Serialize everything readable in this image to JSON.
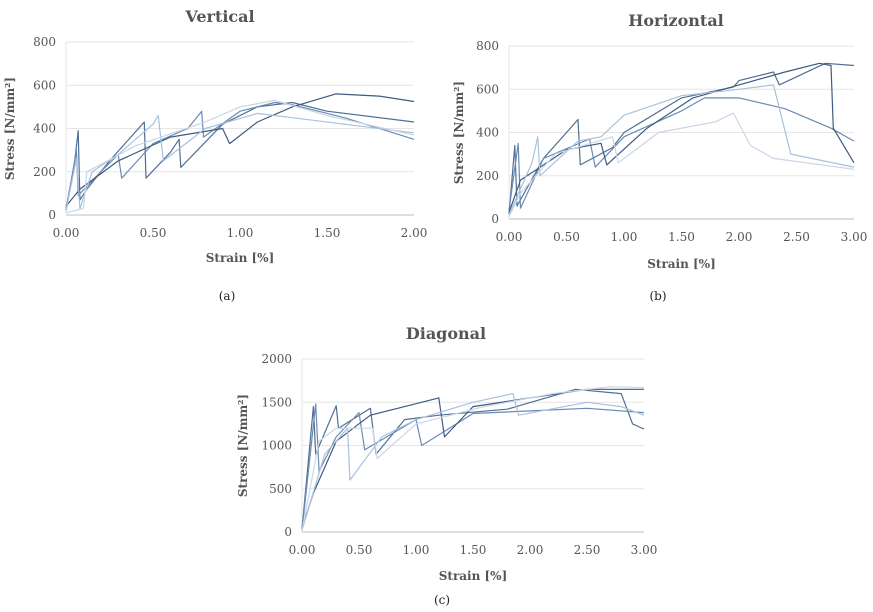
{
  "chart_data": [
    {
      "type": "line",
      "title": "Vertical",
      "xlabel": "Strain [%]",
      "ylabel": "Stress  [N/mm²]",
      "xlim": [
        0,
        2.0
      ],
      "ylim": [
        0,
        800
      ],
      "x_ticks": [
        "0.00",
        "0.50",
        "1.00",
        "1.50",
        "2.00"
      ],
      "y_ticks": [
        "0",
        "200",
        "400",
        "600",
        "800"
      ],
      "panel_label": "(a)",
      "grid": true,
      "series": [
        {
          "color": "#4f6f96",
          "points": [
            [
              0,
              20
            ],
            [
              0.05,
              250
            ],
            [
              0.07,
              390
            ],
            [
              0.08,
              70
            ],
            [
              0.12,
              120
            ],
            [
              0.25,
              250
            ],
            [
              0.45,
              430
            ],
            [
              0.46,
              170
            ],
            [
              0.6,
              290
            ],
            [
              0.65,
              350
            ],
            [
              0.66,
              220
            ],
            [
              0.9,
              420
            ],
            [
              1.1,
              500
            ],
            [
              1.3,
              520
            ],
            [
              1.5,
              480
            ],
            [
              2.0,
              430
            ]
          ]
        },
        {
          "color": "#6b8bb3",
          "points": [
            [
              0,
              30
            ],
            [
              0.04,
              200
            ],
            [
              0.06,
              300
            ],
            [
              0.07,
              90
            ],
            [
              0.2,
              200
            ],
            [
              0.3,
              280
            ],
            [
              0.32,
              170
            ],
            [
              0.5,
              330
            ],
            [
              0.7,
              400
            ],
            [
              0.78,
              480
            ],
            [
              0.79,
              360
            ],
            [
              1.0,
              480
            ],
            [
              1.2,
              520
            ],
            [
              1.3,
              510
            ],
            [
              1.6,
              450
            ],
            [
              2.0,
              350
            ]
          ]
        },
        {
          "color": "#3d5a80",
          "points": [
            [
              0,
              40
            ],
            [
              0.08,
              120
            ],
            [
              0.3,
              250
            ],
            [
              0.6,
              360
            ],
            [
              0.9,
              400
            ],
            [
              0.94,
              330
            ],
            [
              1.1,
              430
            ],
            [
              1.3,
              500
            ],
            [
              1.55,
              560
            ],
            [
              1.8,
              550
            ],
            [
              2.0,
              525
            ]
          ]
        },
        {
          "color": "#a9c1dd",
          "points": [
            [
              0,
              20
            ],
            [
              0.06,
              260
            ],
            [
              0.08,
              30
            ],
            [
              0.15,
              200
            ],
            [
              0.3,
              280
            ],
            [
              0.5,
              420
            ],
            [
              0.53,
              460
            ],
            [
              0.56,
              250
            ],
            [
              0.8,
              400
            ],
            [
              1.1,
              470
            ],
            [
              1.3,
              450
            ],
            [
              1.6,
              420
            ],
            [
              2.0,
              380
            ]
          ]
        },
        {
          "color": "#c9d6e6",
          "points": [
            [
              0,
              10
            ],
            [
              0.1,
              30
            ],
            [
              0.12,
              200
            ],
            [
              0.4,
              320
            ],
            [
              0.8,
              430
            ],
            [
              1.0,
              500
            ],
            [
              1.2,
              530
            ],
            [
              1.5,
              460
            ],
            [
              2.0,
              370
            ]
          ]
        }
      ]
    },
    {
      "type": "line",
      "title": "Horizontal",
      "xlabel": "Strain [%]",
      "ylabel": "Stress  [N/mm²]",
      "xlim": [
        0,
        3.0
      ],
      "ylim": [
        0,
        800
      ],
      "x_ticks": [
        "0.00",
        "0.50",
        "1.00",
        "1.50",
        "2.00",
        "2.50",
        "3.00"
      ],
      "y_ticks": [
        "0",
        "200",
        "400",
        "600",
        "800"
      ],
      "panel_label": "(b)",
      "grid": true,
      "series": [
        {
          "color": "#4f6f96",
          "points": [
            [
              0,
              20
            ],
            [
              0.05,
              340
            ],
            [
              0.07,
              60
            ],
            [
              0.3,
              280
            ],
            [
              0.55,
              430
            ],
            [
              0.6,
              460
            ],
            [
              0.62,
              250
            ],
            [
              0.9,
              330
            ],
            [
              1.0,
              400
            ],
            [
              1.5,
              560
            ],
            [
              1.95,
              610
            ],
            [
              2.0,
              640
            ],
            [
              2.3,
              680
            ],
            [
              2.35,
              620
            ],
            [
              2.75,
              720
            ],
            [
              3.0,
              710
            ]
          ]
        },
        {
          "color": "#6b8bb3",
          "points": [
            [
              0,
              40
            ],
            [
              0.08,
              350
            ],
            [
              0.1,
              50
            ],
            [
              0.3,
              280
            ],
            [
              0.7,
              370
            ],
            [
              0.75,
              240
            ],
            [
              1.0,
              380
            ],
            [
              1.5,
              500
            ],
            [
              1.7,
              560
            ],
            [
              2.0,
              560
            ],
            [
              2.4,
              510
            ],
            [
              2.8,
              420
            ],
            [
              3.0,
              360
            ]
          ]
        },
        {
          "color": "#3d5a80",
          "points": [
            [
              0,
              30
            ],
            [
              0.1,
              180
            ],
            [
              0.5,
              320
            ],
            [
              0.8,
              350
            ],
            [
              0.85,
              250
            ],
            [
              1.2,
              420
            ],
            [
              1.6,
              560
            ],
            [
              2.0,
              620
            ],
            [
              2.4,
              680
            ],
            [
              2.7,
              720
            ],
            [
              2.8,
              710
            ],
            [
              2.82,
              420
            ],
            [
              3.0,
              260
            ]
          ]
        },
        {
          "color": "#a9c1dd",
          "points": [
            [
              0,
              20
            ],
            [
              0.2,
              260
            ],
            [
              0.25,
              380
            ],
            [
              0.27,
              200
            ],
            [
              0.6,
              360
            ],
            [
              0.8,
              380
            ],
            [
              1.0,
              480
            ],
            [
              1.5,
              570
            ],
            [
              2.0,
              600
            ],
            [
              2.3,
              620
            ],
            [
              2.45,
              300
            ],
            [
              3.0,
              240
            ]
          ]
        },
        {
          "color": "#c9d6e6",
          "points": [
            [
              0,
              10
            ],
            [
              0.1,
              120
            ],
            [
              0.4,
              300
            ],
            [
              0.9,
              380
            ],
            [
              0.95,
              260
            ],
            [
              1.3,
              400
            ],
            [
              1.8,
              450
            ],
            [
              1.95,
              490
            ],
            [
              2.1,
              340
            ],
            [
              2.3,
              280
            ],
            [
              3.0,
              230
            ]
          ]
        }
      ]
    },
    {
      "type": "line",
      "title": "Diagonal",
      "xlabel": "Strain [%]",
      "ylabel": "Stress  [N/mm²]",
      "xlim": [
        0,
        3.0
      ],
      "ylim": [
        0,
        2000
      ],
      "x_ticks": [
        "0.00",
        "0.50",
        "1.00",
        "1.50",
        "2.00",
        "2.50",
        "3.00"
      ],
      "y_ticks": [
        "0",
        "500",
        "1000",
        "1500",
        "2000"
      ],
      "panel_label": "(c)",
      "grid": true,
      "series": [
        {
          "color": "#4f6f96",
          "points": [
            [
              0,
              30
            ],
            [
              0.1,
              1450
            ],
            [
              0.12,
              900
            ],
            [
              0.3,
              1460
            ],
            [
              0.32,
              1200
            ],
            [
              0.6,
              1430
            ],
            [
              0.65,
              900
            ],
            [
              0.9,
              1300
            ],
            [
              1.2,
              1350
            ],
            [
              1.8,
              1420
            ],
            [
              2.4,
              1650
            ],
            [
              2.8,
              1600
            ],
            [
              2.9,
              1250
            ],
            [
              3.0,
              1190
            ]
          ]
        },
        {
          "color": "#6b8bb3",
          "points": [
            [
              0,
              20
            ],
            [
              0.12,
              1480
            ],
            [
              0.15,
              700
            ],
            [
              0.3,
              1100
            ],
            [
              0.5,
              1380
            ],
            [
              0.55,
              950
            ],
            [
              1.0,
              1300
            ],
            [
              1.05,
              1000
            ],
            [
              1.5,
              1370
            ],
            [
              2.0,
              1400
            ],
            [
              2.5,
              1430
            ],
            [
              3.0,
              1380
            ]
          ]
        },
        {
          "color": "#3d5a80",
          "points": [
            [
              0,
              40
            ],
            [
              0.1,
              450
            ],
            [
              0.3,
              1050
            ],
            [
              0.6,
              1350
            ],
            [
              0.9,
              1450
            ],
            [
              1.2,
              1550
            ],
            [
              1.25,
              1100
            ],
            [
              1.5,
              1450
            ],
            [
              2.0,
              1550
            ],
            [
              2.5,
              1650
            ],
            [
              3.0,
              1650
            ]
          ]
        },
        {
          "color": "#a9c1dd",
          "points": [
            [
              0,
              20
            ],
            [
              0.2,
              900
            ],
            [
              0.4,
              1200
            ],
            [
              0.42,
              600
            ],
            [
              0.7,
              1100
            ],
            [
              1.0,
              1300
            ],
            [
              1.5,
              1500
            ],
            [
              1.85,
              1600
            ],
            [
              1.9,
              1350
            ],
            [
              2.5,
              1500
            ],
            [
              2.8,
              1450
            ],
            [
              3.0,
              1350
            ]
          ]
        },
        {
          "color": "#c9d6e6",
          "points": [
            [
              0,
              10
            ],
            [
              0.15,
              1050
            ],
            [
              0.3,
              1200
            ],
            [
              0.62,
              1200
            ],
            [
              0.66,
              850
            ],
            [
              1.0,
              1250
            ],
            [
              1.6,
              1450
            ],
            [
              2.2,
              1600
            ],
            [
              2.7,
              1680
            ],
            [
              3.0,
              1670
            ]
          ]
        }
      ]
    }
  ]
}
